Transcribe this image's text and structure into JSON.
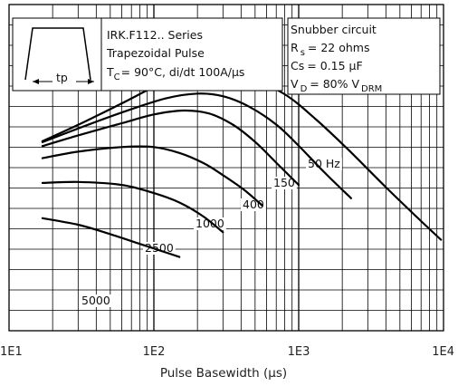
{
  "chart_data": {
    "type": "line",
    "title": "",
    "xlabel": "Pulse Basewidth (µs)",
    "ylabel": "",
    "xscale": "log",
    "xlim": [
      10,
      10000
    ],
    "xticks": [
      "1E1",
      "1E2",
      "1E3",
      "1E4"
    ],
    "yticks": [],
    "grid": true,
    "legend": "none",
    "series": [
      {
        "name": "50 Hz",
        "x": [
          17,
          30,
          60,
          120,
          200,
          300,
          450,
          800,
          1300,
          2200,
          4000,
          7000,
          9600
        ],
        "y": [
          0.581,
          0.631,
          0.697,
          0.764,
          0.794,
          0.797,
          0.779,
          0.725,
          0.65,
          0.555,
          0.44,
          0.336,
          0.279
        ]
      },
      {
        "name": "150",
        "x": [
          17,
          30,
          60,
          120,
          200,
          300,
          450,
          700,
          1000,
          1500,
          2300
        ],
        "y": [
          0.578,
          0.62,
          0.669,
          0.712,
          0.727,
          0.719,
          0.688,
          0.632,
          0.567,
          0.486,
          0.406
        ]
      },
      {
        "name": "400",
        "x": [
          17,
          30,
          60,
          100,
          160,
          240,
          350,
          500,
          700,
          1000
        ],
        "y": [
          0.566,
          0.599,
          0.636,
          0.663,
          0.675,
          0.666,
          0.632,
          0.579,
          0.515,
          0.447
        ]
      },
      {
        "name": "1000",
        "x": [
          17,
          30,
          60,
          100,
          150,
          220,
          300,
          420,
          560
        ],
        "y": [
          0.529,
          0.549,
          0.563,
          0.563,
          0.545,
          0.514,
          0.477,
          0.432,
          0.384
        ]
      },
      {
        "name": "2500",
        "x": [
          17,
          30,
          60,
          100,
          150,
          220,
          300
        ],
        "y": [
          0.453,
          0.456,
          0.447,
          0.422,
          0.393,
          0.35,
          0.302
        ]
      },
      {
        "name": "5000",
        "x": [
          17,
          30,
          50,
          80,
          110,
          150
        ],
        "y": [
          0.345,
          0.325,
          0.296,
          0.266,
          0.246,
          0.226
        ]
      }
    ],
    "annotations": {
      "device_box": {
        "lines": [
          "IRK.F112.. Series",
          "Trapezoidal Pulse"
        ],
        "cond_main": "T",
        "cond_sub": "C",
        "cond_rest": "= 90°C, di/dt 100A/µs",
        "pulse_label": "tp"
      },
      "snubber_box": {
        "title": "Snubber circuit",
        "rs_main": "R",
        "rs_sub": "s",
        "rs_rest": "= 22 ohms",
        "cs_main": "Cs",
        "cs_rest": "= 0.15 µF",
        "vd_main": "V",
        "vd_sub": "D",
        "vd_rest": "= 80% V",
        "vd_sub2": "DRM"
      }
    }
  }
}
